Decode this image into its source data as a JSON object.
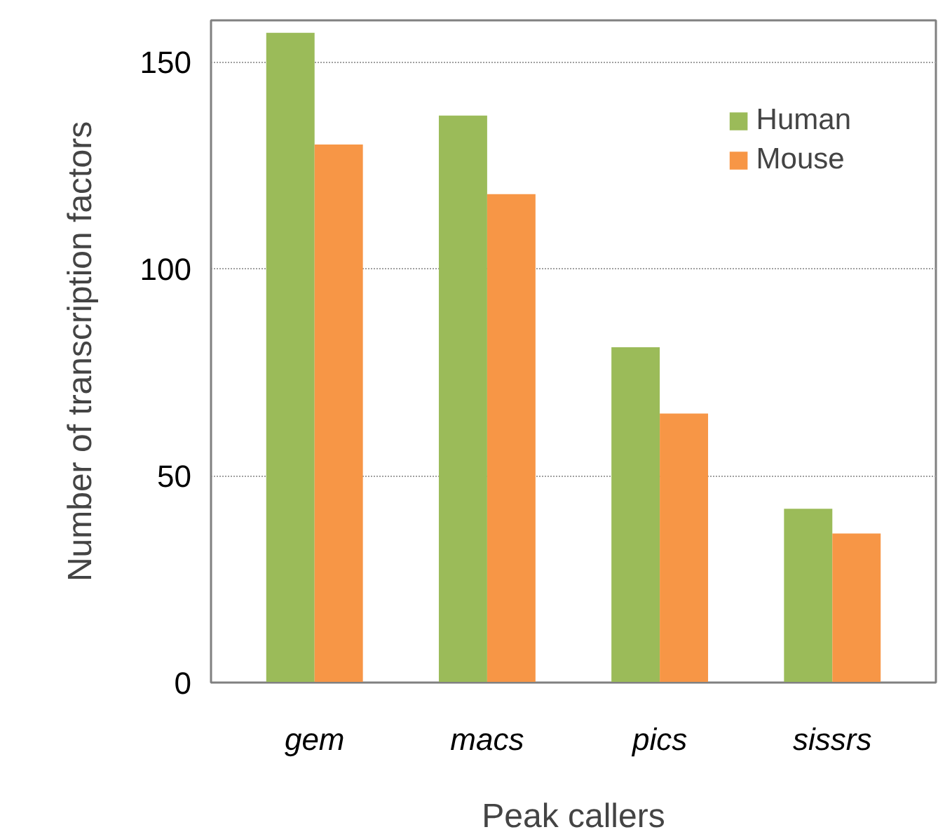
{
  "chart_data": {
    "type": "bar",
    "xlabel": "Peak callers",
    "ylabel": "Number of transcription factors",
    "categories": [
      "gem",
      "macs",
      "pics",
      "sissrs"
    ],
    "series": [
      {
        "name": "Human",
        "color": "#9bbb59",
        "values": [
          157,
          137,
          81,
          42
        ]
      },
      {
        "name": "Mouse",
        "color": "#f79646",
        "values": [
          130,
          118,
          65,
          36
        ]
      }
    ],
    "ylim": [
      0,
      160
    ],
    "yticks": [
      0,
      50,
      100,
      150
    ],
    "grid": "y",
    "legend": "top right"
  }
}
